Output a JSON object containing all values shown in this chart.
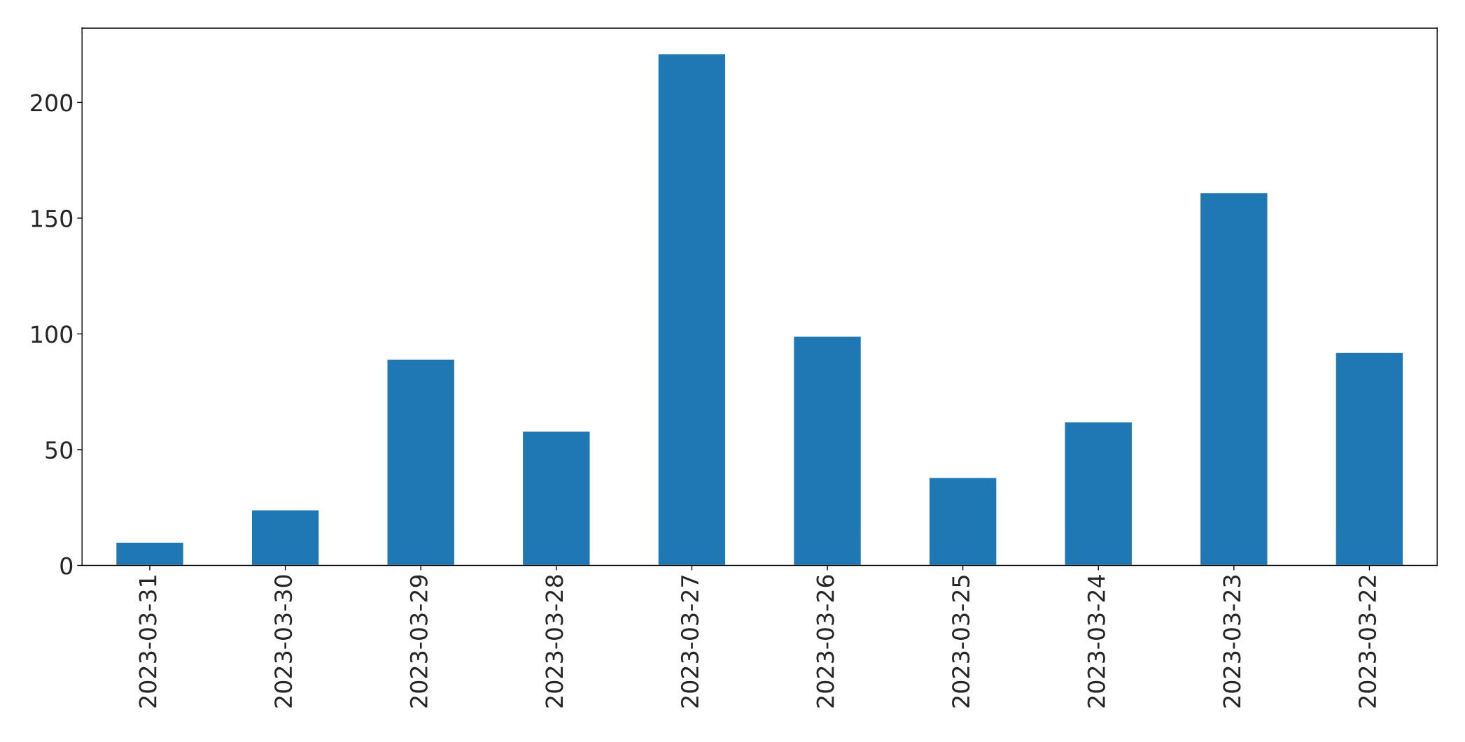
{
  "chart_data": {
    "type": "bar",
    "categories": [
      "2023-03-31",
      "2023-03-30",
      "2023-03-29",
      "2023-03-28",
      "2023-03-27",
      "2023-03-26",
      "2023-03-25",
      "2023-03-24",
      "2023-03-23",
      "2023-03-22"
    ],
    "values": [
      10,
      24,
      89,
      58,
      221,
      99,
      38,
      62,
      161,
      92
    ],
    "color": "#1f77b4",
    "ylim": [
      0,
      232.05
    ],
    "yticks": [
      0,
      50,
      100,
      150,
      200
    ],
    "grid": false,
    "legend": false
  }
}
